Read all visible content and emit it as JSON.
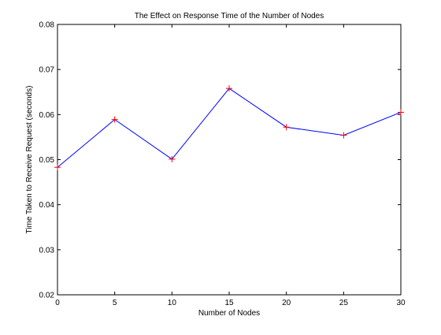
{
  "chart_data": {
    "type": "line",
    "title": "The Effect on Response Time of the Number of Nodes",
    "xlabel": "Number of Nodes",
    "ylabel": "Time Taken to Receive Request (seconds)",
    "xlim": [
      0,
      30
    ],
    "ylim": [
      0.02,
      0.08
    ],
    "xticks": [
      0,
      5,
      10,
      15,
      20,
      25,
      30
    ],
    "xtick_labels": [
      "0",
      "5",
      "10",
      "15",
      "20",
      "25",
      "30"
    ],
    "yticks": [
      0.02,
      0.03,
      0.04,
      0.05,
      0.06,
      0.07,
      0.08
    ],
    "ytick_labels": [
      "0.02",
      "0.03",
      "0.04",
      "0.05",
      "0.06",
      "0.07",
      "0.08"
    ],
    "grid": false,
    "series": [
      {
        "x": [
          0,
          5,
          10,
          15,
          20,
          25,
          30
        ],
        "y": [
          0.0483,
          0.0589,
          0.0501,
          0.0658,
          0.0572,
          0.0554,
          0.0605
        ],
        "line_color": "#0000ff",
        "marker": "plus",
        "marker_color": "#ff0000"
      }
    ]
  }
}
